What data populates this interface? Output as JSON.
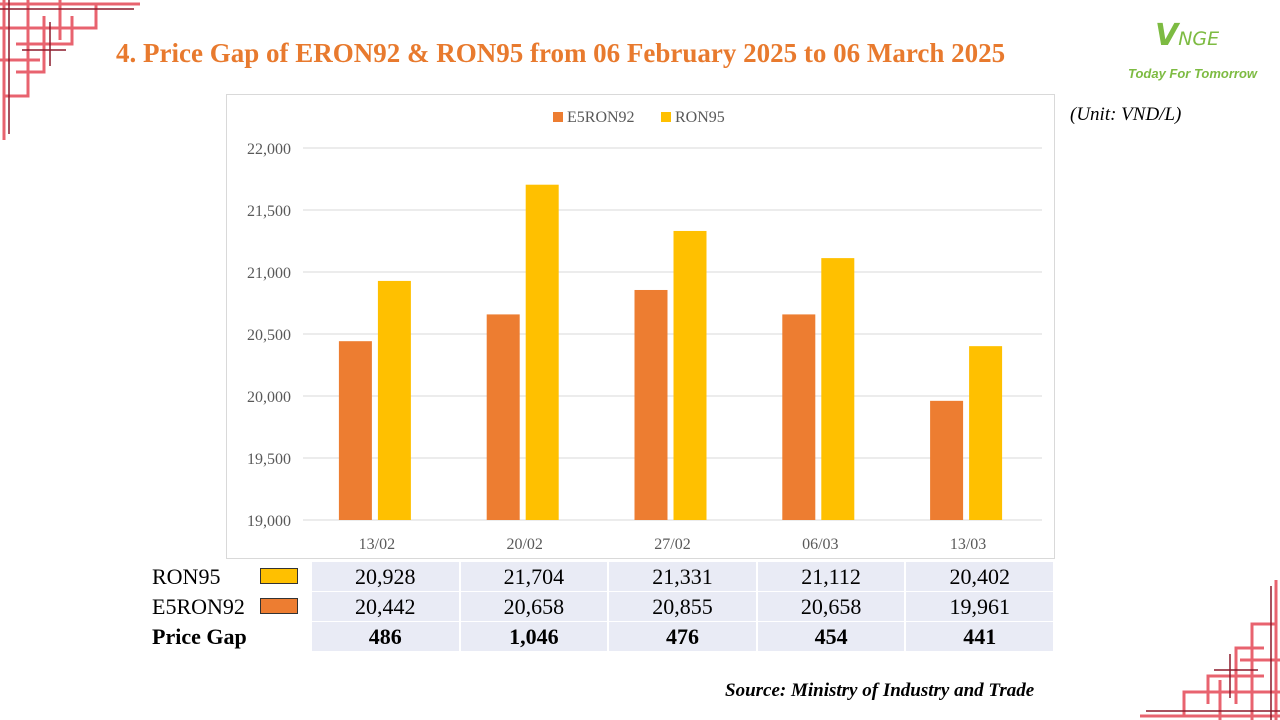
{
  "title": "4. Price Gap of ERON92 & RON95 from 06 February 2025 to 06 March 2025",
  "unit": "(Unit: VND/L)",
  "logo": {
    "mark": "V",
    "mark_rest": "NGE",
    "tagline": "Today For Tomorrow"
  },
  "source": "Source: Ministry of Industry and Trade",
  "colors": {
    "title": "#E87A2E",
    "e5ron92": "#ED7D31",
    "ron95": "#FFC000",
    "table_fill": "#E9EBF5",
    "decor": "#E8636F",
    "logo": "#7DBB42"
  },
  "chart_data": {
    "type": "bar",
    "categories": [
      "13/02",
      "20/02",
      "27/02",
      "06/03",
      "13/03"
    ],
    "series": [
      {
        "name": "E5RON92",
        "values": [
          20442,
          20658,
          20855,
          20658,
          19961
        ]
      },
      {
        "name": "RON95",
        "values": [
          20928,
          21704,
          21331,
          21112,
          20402
        ]
      }
    ],
    "ylim": [
      19000,
      22000
    ],
    "yticks": [
      "19,000",
      "19,500",
      "20,000",
      "20,500",
      "21,000",
      "21,500",
      "22,000"
    ],
    "ytick_values": [
      19000,
      19500,
      20000,
      20500,
      21000,
      21500,
      22000
    ],
    "legend": "top-center",
    "grid": true
  },
  "table": {
    "rows": [
      {
        "label": "RON95",
        "values": [
          "20,928",
          "21,704",
          "21,331",
          "21,112",
          "20,402"
        ]
      },
      {
        "label": "E5RON92",
        "values": [
          "20,442",
          "20,658",
          "20,855",
          "20,658",
          "19,961"
        ]
      },
      {
        "label": "Price Gap",
        "values": [
          "486",
          "1,046",
          "476",
          "454",
          "441"
        ]
      }
    ]
  }
}
